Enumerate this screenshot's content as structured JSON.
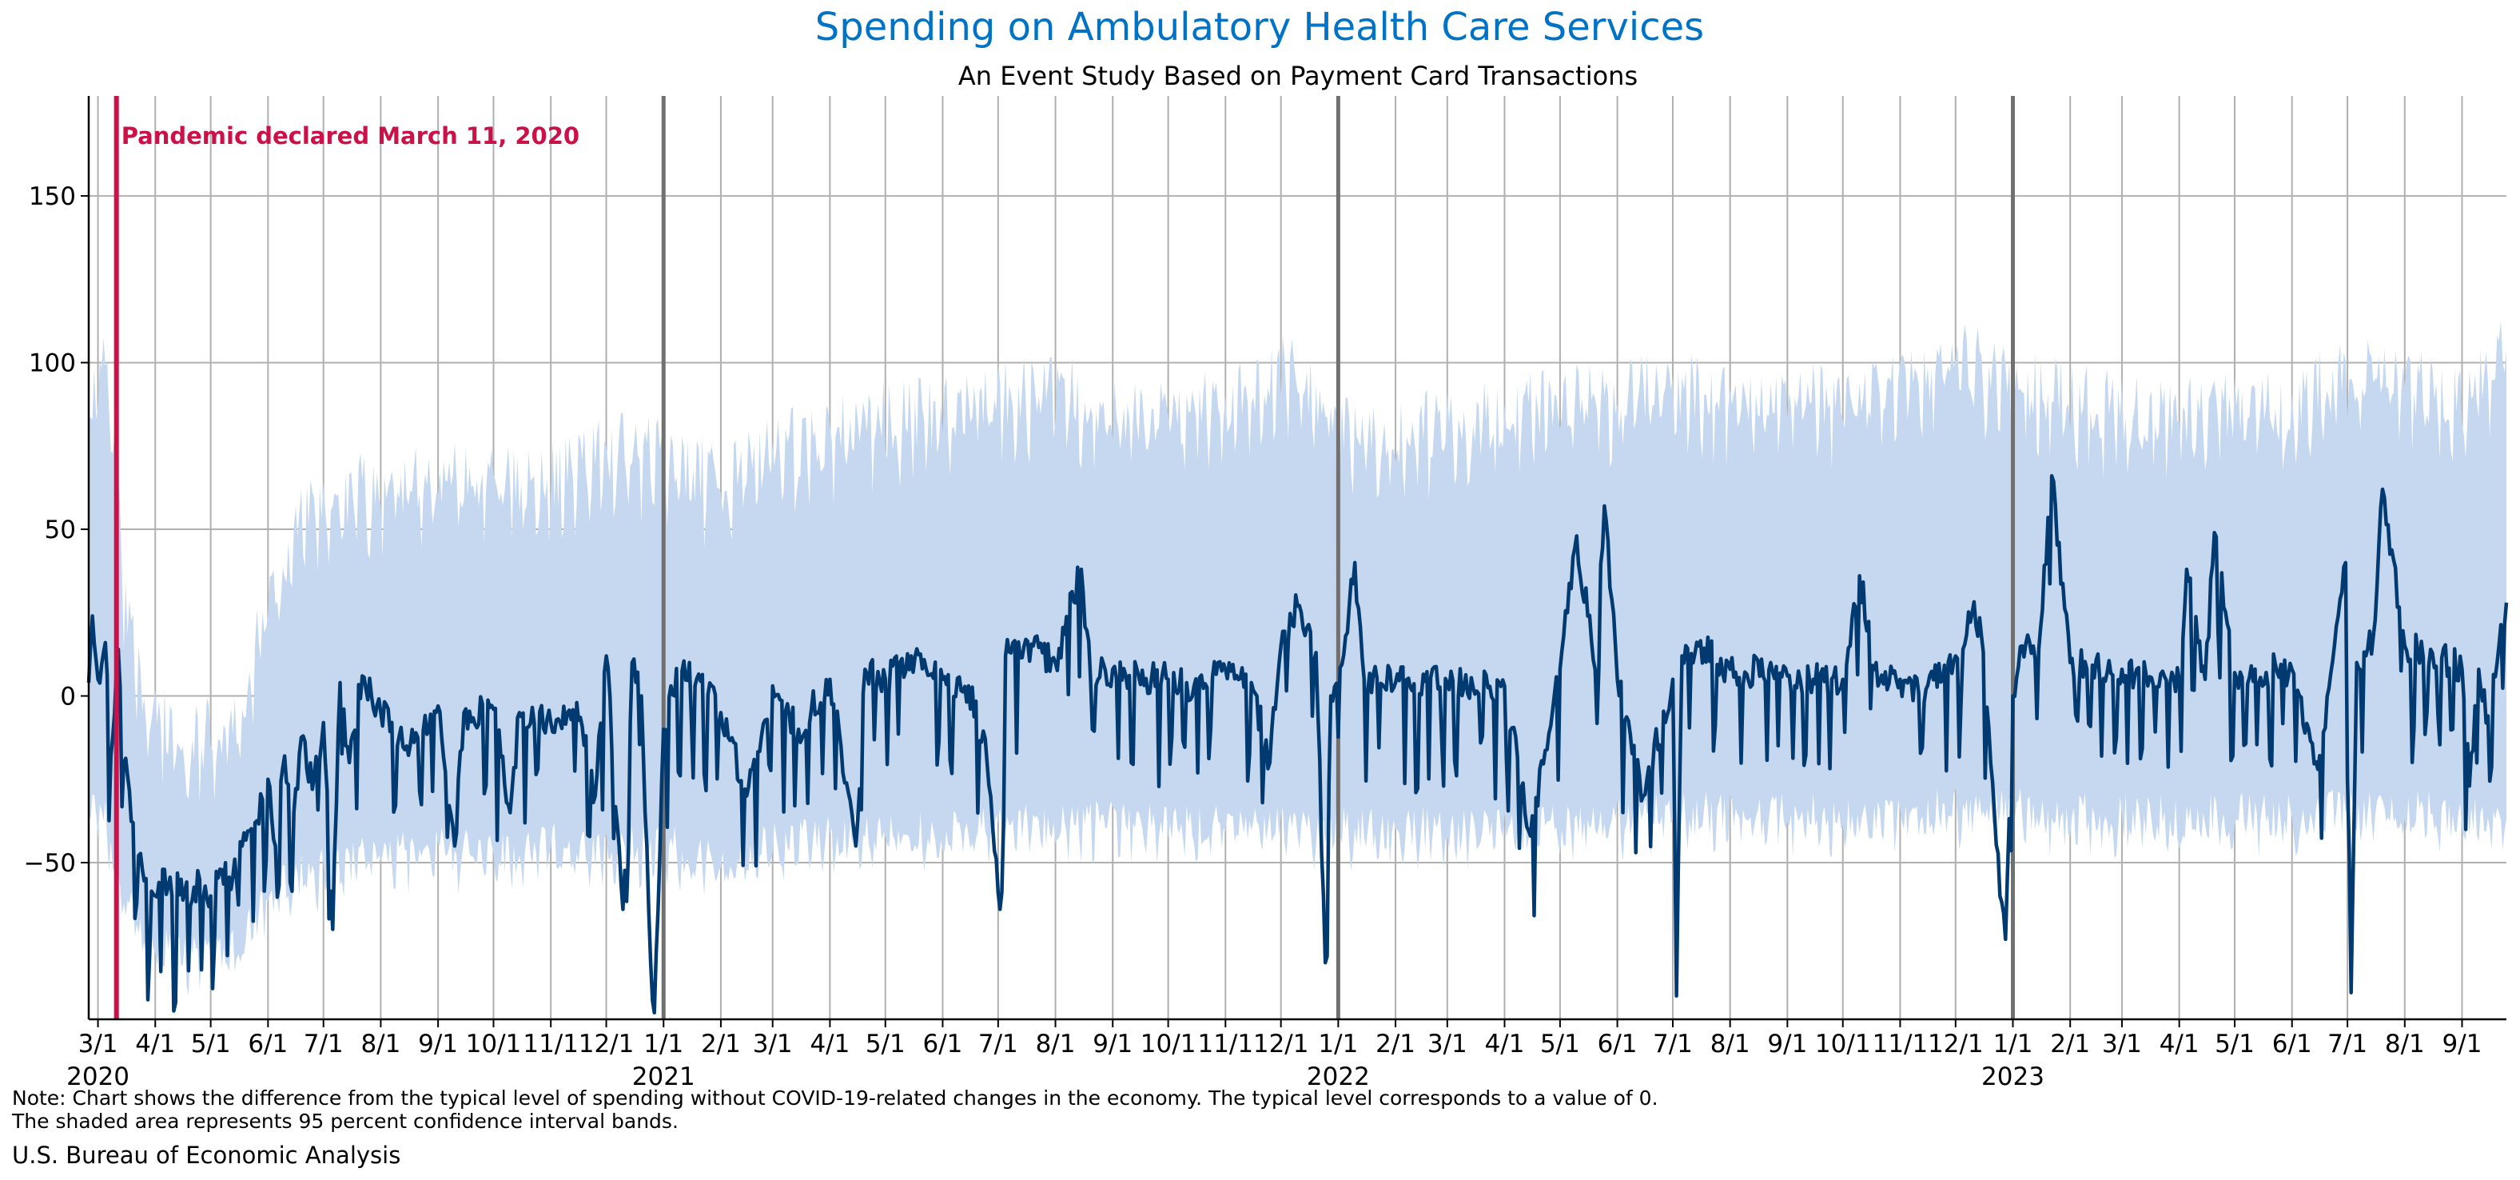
{
  "chart_data": {
    "type": "line",
    "title": "Spending on Ambulatory Health Care Services",
    "subtitle": "An Event Study Based on Payment Card Transactions",
    "title_color": "#0073c6",
    "series_color": "#003a70",
    "band_color": "#c5d8ef",
    "event_color": "#cc1148",
    "x_range": [
      "2020-02-25",
      "2023-09-25"
    ],
    "ylim": [
      -97,
      180
    ],
    "yticks": [
      -50,
      0,
      50,
      100,
      150
    ],
    "grid": true,
    "month_ticks": [
      {
        "date": "2020-03-01",
        "label": "3/1"
      },
      {
        "date": "2020-04-01",
        "label": "4/1"
      },
      {
        "date": "2020-05-01",
        "label": "5/1"
      },
      {
        "date": "2020-06-01",
        "label": "6/1"
      },
      {
        "date": "2020-07-01",
        "label": "7/1"
      },
      {
        "date": "2020-08-01",
        "label": "8/1"
      },
      {
        "date": "2020-09-01",
        "label": "9/1"
      },
      {
        "date": "2020-10-01",
        "label": "10/1"
      },
      {
        "date": "2020-11-01",
        "label": "11/1"
      },
      {
        "date": "2020-12-01",
        "label": "12/1"
      },
      {
        "date": "2021-01-01",
        "label": "1/1"
      },
      {
        "date": "2021-02-01",
        "label": "2/1"
      },
      {
        "date": "2021-03-01",
        "label": "3/1"
      },
      {
        "date": "2021-04-01",
        "label": "4/1"
      },
      {
        "date": "2021-05-01",
        "label": "5/1"
      },
      {
        "date": "2021-06-01",
        "label": "6/1"
      },
      {
        "date": "2021-07-01",
        "label": "7/1"
      },
      {
        "date": "2021-08-01",
        "label": "8/1"
      },
      {
        "date": "2021-09-01",
        "label": "9/1"
      },
      {
        "date": "2021-10-01",
        "label": "10/1"
      },
      {
        "date": "2021-11-01",
        "label": "11/1"
      },
      {
        "date": "2021-12-01",
        "label": "12/1"
      },
      {
        "date": "2022-01-01",
        "label": "1/1"
      },
      {
        "date": "2022-02-01",
        "label": "2/1"
      },
      {
        "date": "2022-03-01",
        "label": "3/1"
      },
      {
        "date": "2022-04-01",
        "label": "4/1"
      },
      {
        "date": "2022-05-01",
        "label": "5/1"
      },
      {
        "date": "2022-06-01",
        "label": "6/1"
      },
      {
        "date": "2022-07-01",
        "label": "7/1"
      },
      {
        "date": "2022-08-01",
        "label": "8/1"
      },
      {
        "date": "2022-09-01",
        "label": "9/1"
      },
      {
        "date": "2022-10-01",
        "label": "10/1"
      },
      {
        "date": "2022-11-01",
        "label": "11/1"
      },
      {
        "date": "2022-12-01",
        "label": "12/1"
      },
      {
        "date": "2023-01-01",
        "label": "1/1"
      },
      {
        "date": "2023-02-01",
        "label": "2/1"
      },
      {
        "date": "2023-03-01",
        "label": "3/1"
      },
      {
        "date": "2023-04-01",
        "label": "4/1"
      },
      {
        "date": "2023-05-01",
        "label": "5/1"
      },
      {
        "date": "2023-06-01",
        "label": "6/1"
      },
      {
        "date": "2023-07-01",
        "label": "7/1"
      },
      {
        "date": "2023-08-01",
        "label": "8/1"
      },
      {
        "date": "2023-09-01",
        "label": "9/1"
      }
    ],
    "year_labels": [
      {
        "date": "2020-03-01",
        "label": "2020"
      },
      {
        "date": "2021-01-01",
        "label": "2021"
      },
      {
        "date": "2022-01-01",
        "label": "2022"
      },
      {
        "date": "2023-01-01",
        "label": "2023"
      }
    ],
    "year_boundaries": [
      "2021-01-01",
      "2022-01-01",
      "2023-01-01"
    ],
    "event": {
      "date": "2020-03-11",
      "label": "Pandemic declared March 11, 2020"
    },
    "series": [
      {
        "type": "line",
        "data": [
          [
            "2020-02-25",
            4
          ],
          [
            "2020-02-27",
            24
          ],
          [
            "2020-03-01",
            5
          ],
          [
            "2020-03-05",
            16
          ],
          [
            "2020-03-08",
            -18
          ],
          [
            "2020-03-12",
            14
          ],
          [
            "2020-03-15",
            -20
          ],
          [
            "2020-03-20",
            -38
          ],
          [
            "2020-03-25",
            -52
          ],
          [
            "2020-04-01",
            -60
          ],
          [
            "2020-04-05",
            -52
          ],
          [
            "2020-04-10",
            -60
          ],
          [
            "2020-04-15",
            -55
          ],
          [
            "2020-04-20",
            -63
          ],
          [
            "2020-04-25",
            -55
          ],
          [
            "2020-05-01",
            -60
          ],
          [
            "2020-05-06",
            -52
          ],
          [
            "2020-05-12",
            -58
          ],
          [
            "2020-05-18",
            -45
          ],
          [
            "2020-05-25",
            -38
          ],
          [
            "2020-06-01",
            -25
          ],
          [
            "2020-06-05",
            -45
          ],
          [
            "2020-06-10",
            -18
          ],
          [
            "2020-06-15",
            -35
          ],
          [
            "2020-06-20",
            -12
          ],
          [
            "2020-06-25",
            -28
          ],
          [
            "2020-07-01",
            -8
          ],
          [
            "2020-07-06",
            -70
          ],
          [
            "2020-07-10",
            4
          ],
          [
            "2020-07-15",
            -20
          ],
          [
            "2020-07-22",
            6
          ],
          [
            "2020-08-01",
            -5
          ],
          [
            "2020-08-15",
            -15
          ],
          [
            "2020-09-01",
            -3
          ],
          [
            "2020-09-10",
            -45
          ],
          [
            "2020-09-15",
            -5
          ],
          [
            "2020-10-01",
            -4
          ],
          [
            "2020-10-10",
            -35
          ],
          [
            "2020-10-15",
            -5
          ],
          [
            "2020-11-01",
            -8
          ],
          [
            "2020-11-15",
            -2
          ],
          [
            "2020-11-25",
            -30
          ],
          [
            "2020-12-01",
            12
          ],
          [
            "2020-12-10",
            -64
          ],
          [
            "2020-12-15",
            10
          ],
          [
            "2020-12-20",
            0
          ],
          [
            "2020-12-25",
            -80
          ],
          [
            "2020-12-27",
            -95
          ],
          [
            "2021-01-01",
            -10
          ],
          [
            "2021-01-05",
            3
          ],
          [
            "2021-01-15",
            10
          ],
          [
            "2021-02-01",
            -5
          ],
          [
            "2021-02-15",
            -30
          ],
          [
            "2021-03-01",
            3
          ],
          [
            "2021-03-15",
            -10
          ],
          [
            "2021-04-01",
            5
          ],
          [
            "2021-04-15",
            -45
          ],
          [
            "2021-04-20",
            8
          ],
          [
            "2021-05-01",
            5
          ],
          [
            "2021-05-15",
            12
          ],
          [
            "2021-06-01",
            5
          ],
          [
            "2021-06-15",
            3
          ],
          [
            "2021-06-25",
            -20
          ],
          [
            "2021-07-02",
            -64
          ],
          [
            "2021-07-05",
            12
          ],
          [
            "2021-07-20",
            15
          ],
          [
            "2021-08-01",
            10
          ],
          [
            "2021-08-15",
            38
          ],
          [
            "2021-08-20",
            5
          ],
          [
            "2021-09-01",
            8
          ],
          [
            "2021-09-15",
            6
          ],
          [
            "2021-10-01",
            5
          ],
          [
            "2021-10-15",
            3
          ],
          [
            "2021-11-01",
            8
          ],
          [
            "2021-11-15",
            4
          ],
          [
            "2021-11-25",
            -20
          ],
          [
            "2021-12-01",
            15
          ],
          [
            "2021-12-10",
            27
          ],
          [
            "2021-12-20",
            13
          ],
          [
            "2021-12-25",
            -80
          ],
          [
            "2021-12-28",
            0
          ],
          [
            "2022-01-05",
            18
          ],
          [
            "2022-01-10",
            40
          ],
          [
            "2022-01-15",
            5
          ],
          [
            "2022-02-01",
            4
          ],
          [
            "2022-03-01",
            4
          ],
          [
            "2022-04-01",
            3
          ],
          [
            "2022-04-15",
            -42
          ],
          [
            "2022-05-01",
            8
          ],
          [
            "2022-05-10",
            48
          ],
          [
            "2022-05-20",
            8
          ],
          [
            "2022-05-25",
            57
          ],
          [
            "2022-06-01",
            5
          ],
          [
            "2022-06-15",
            -30
          ],
          [
            "2022-07-01",
            5
          ],
          [
            "2022-07-03",
            -90
          ],
          [
            "2022-07-06",
            12
          ],
          [
            "2022-07-15",
            15
          ],
          [
            "2022-08-01",
            8
          ],
          [
            "2022-09-01",
            6
          ],
          [
            "2022-09-15",
            5
          ],
          [
            "2022-10-01",
            5
          ],
          [
            "2022-10-10",
            36
          ],
          [
            "2022-10-20",
            3
          ],
          [
            "2022-11-01",
            5
          ],
          [
            "2022-11-15",
            2
          ],
          [
            "2022-12-01",
            12
          ],
          [
            "2022-12-10",
            25
          ],
          [
            "2022-12-15",
            18
          ],
          [
            "2022-12-25",
            -60
          ],
          [
            "2022-12-28",
            -73
          ],
          [
            "2023-01-01",
            0
          ],
          [
            "2023-01-06",
            15
          ],
          [
            "2023-01-15",
            14
          ],
          [
            "2023-01-22",
            66
          ],
          [
            "2023-02-01",
            10
          ],
          [
            "2023-03-01",
            8
          ],
          [
            "2023-04-01",
            5
          ],
          [
            "2023-04-05",
            38
          ],
          [
            "2023-04-15",
            5
          ],
          [
            "2023-04-20",
            49
          ],
          [
            "2023-05-01",
            7
          ],
          [
            "2023-06-01",
            8
          ],
          [
            "2023-06-15",
            -22
          ],
          [
            "2023-06-30",
            40
          ],
          [
            "2023-07-03",
            -89
          ],
          [
            "2023-07-06",
            10
          ],
          [
            "2023-07-15",
            18
          ],
          [
            "2023-07-20",
            62
          ],
          [
            "2023-08-01",
            15
          ],
          [
            "2023-08-15",
            14
          ],
          [
            "2023-09-01",
            8
          ],
          [
            "2023-09-05",
            -27
          ],
          [
            "2023-09-10",
            8
          ],
          [
            "2023-09-15",
            -6
          ],
          [
            "2023-09-20",
            10
          ],
          [
            "2023-09-25",
            28
          ]
        ]
      },
      {
        "type": "band",
        "data": [
          [
            "2020-02-25",
            -35,
            85
          ],
          [
            "2020-03-05",
            -35,
            100
          ],
          [
            "2020-03-15",
            -60,
            30
          ],
          [
            "2020-03-25",
            -72,
            0
          ],
          [
            "2020-04-15",
            -78,
            -18
          ],
          [
            "2020-05-15",
            -76,
            -12
          ],
          [
            "2020-06-01",
            -60,
            25
          ],
          [
            "2020-06-15",
            -55,
            45
          ],
          [
            "2020-07-01",
            -52,
            55
          ],
          [
            "2020-08-01",
            -48,
            60
          ],
          [
            "2020-09-01",
            -46,
            62
          ],
          [
            "2020-10-01",
            -48,
            60
          ],
          [
            "2020-11-01",
            -45,
            62
          ],
          [
            "2020-12-01",
            -45,
            70
          ],
          [
            "2021-01-01",
            -45,
            70
          ],
          [
            "2021-02-01",
            -50,
            60
          ],
          [
            "2021-03-01",
            -45,
            70
          ],
          [
            "2021-04-01",
            -42,
            75
          ],
          [
            "2021-05-01",
            -40,
            80
          ],
          [
            "2021-06-01",
            -40,
            80
          ],
          [
            "2021-07-01",
            -40,
            85
          ],
          [
            "2021-08-01",
            -38,
            90
          ],
          [
            "2021-09-01",
            -38,
            80
          ],
          [
            "2021-10-01",
            -38,
            80
          ],
          [
            "2021-11-01",
            -38,
            85
          ],
          [
            "2021-12-01",
            -38,
            95
          ],
          [
            "2022-01-01",
            -40,
            78
          ],
          [
            "2022-02-01",
            -40,
            75
          ],
          [
            "2022-03-01",
            -40,
            78
          ],
          [
            "2022-04-01",
            -40,
            80
          ],
          [
            "2022-05-01",
            -38,
            85
          ],
          [
            "2022-06-01",
            -38,
            85
          ],
          [
            "2022-07-01",
            -35,
            90
          ],
          [
            "2022-08-01",
            -36,
            85
          ],
          [
            "2022-09-01",
            -36,
            85
          ],
          [
            "2022-10-01",
            -36,
            85
          ],
          [
            "2022-11-01",
            -36,
            88
          ],
          [
            "2022-12-01",
            -34,
            100
          ],
          [
            "2023-01-01",
            -34,
            90
          ],
          [
            "2023-02-01",
            -36,
            85
          ],
          [
            "2023-03-01",
            -36,
            82
          ],
          [
            "2023-04-01",
            -36,
            80
          ],
          [
            "2023-05-01",
            -36,
            82
          ],
          [
            "2023-06-01",
            -36,
            82
          ],
          [
            "2023-07-01",
            -34,
            95
          ],
          [
            "2023-08-01",
            -35,
            90
          ],
          [
            "2023-09-01",
            -35,
            85
          ],
          [
            "2023-09-25",
            -35,
            100
          ]
        ]
      }
    ]
  },
  "footer": {
    "note_line1": "Note: Chart shows the difference from the typical level of spending without COVID-19-related changes in the economy. The typical level corresponds to a value of 0.",
    "note_line2": "The shaded area represents 95 percent confidence interval bands.",
    "source": "U.S. Bureau of Economic Analysis"
  }
}
